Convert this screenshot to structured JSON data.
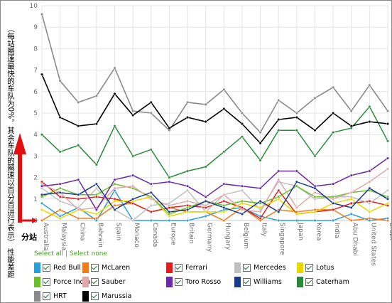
{
  "chart_data": {
    "type": "line",
    "ylabel": "（每站圈速最快的车队为0%，其余车队的圈速以百分百进行表示） 性能差距",
    "xlabel": "分站",
    "ylim": [
      0,
      10
    ],
    "y_ticks": [
      "0",
      "1",
      "2",
      "3",
      "4",
      "5",
      "6",
      "7",
      "8",
      "9",
      "10"
    ],
    "grid": true,
    "categories": [
      "Australia",
      "Malaysia",
      "China",
      "Bahrain",
      "Spain",
      "Monaco",
      "Canada",
      "Europe",
      "Britain",
      "Germany",
      "Hungary",
      "Belgium",
      "Italy",
      "Singapore",
      "Japan",
      "Korea",
      "India",
      "Abu Dhabi",
      "United States",
      "Brazil"
    ],
    "series": [
      {
        "name": "Red Bull",
        "color": "#2a9fd6",
        "values": [
          0.8,
          0.2,
          0.6,
          0.0,
          1.4,
          0.0,
          0.0,
          0.0,
          0.0,
          0.2,
          0.5,
          0.6,
          0.2,
          0.0,
          0.0,
          0.0,
          0.0,
          0.3,
          0.0,
          0.1
        ]
      },
      {
        "name": "McLaren",
        "color": "#f07c1e",
        "values": [
          0.0,
          0.5,
          0.1,
          0.1,
          0.7,
          0.8,
          0.4,
          0.6,
          0.4,
          0.4,
          0.0,
          0.6,
          0.0,
          0.5,
          0.4,
          0.5,
          0.5,
          0.0,
          0.1,
          0.0
        ]
      },
      {
        "name": "Ferrari",
        "color": "#e01e1e",
        "values": [
          1.8,
          1.1,
          1.0,
          1.1,
          1.0,
          0.8,
          0.4,
          0.6,
          0.7,
          0.6,
          0.9,
          0.6,
          0.1,
          1.4,
          0.3,
          0.4,
          0.5,
          0.8,
          0.9,
          0.7
        ]
      },
      {
        "name": "Mercedes",
        "color": "#c0c0c0",
        "values": [
          1.5,
          0.9,
          0.6,
          1.5,
          0.5,
          0.0,
          0.7,
          0.8,
          1.4,
          0.4,
          1.2,
          1.4,
          0.5,
          1.8,
          1.6,
          1.0,
          1.1,
          1.1,
          0.8,
          1.4
        ]
      },
      {
        "name": "Lotus",
        "color": "#e8d800",
        "values": [
          0.5,
          0.1,
          0.5,
          0.3,
          0.9,
          0.9,
          1.1,
          0.2,
          0.4,
          0.4,
          0.4,
          0.8,
          0.6,
          1.0,
          0.3,
          0.4,
          0.8,
          1.0,
          0.4,
          0.8
        ]
      },
      {
        "name": "Force India",
        "color": "#6bbf2a",
        "values": [
          1.1,
          1.5,
          1.2,
          1.2,
          1.7,
          1.5,
          1.1,
          0.3,
          0.6,
          0.9,
          0.7,
          0.9,
          0.8,
          1.1,
          1.6,
          1.1,
          1.1,
          1.3,
          1.4,
          1.1
        ]
      },
      {
        "name": "Sauber",
        "color": "#e0a8a8",
        "values": [
          1.7,
          1.3,
          0.5,
          0.6,
          1.5,
          1.6,
          1.0,
          0.7,
          0.9,
          0.7,
          1.2,
          0.5,
          0.4,
          1.9,
          0.6,
          1.3,
          1.0,
          1.3,
          1.8,
          2.4
        ]
      },
      {
        "name": "Toro Rosso",
        "color": "#6a2aa8",
        "values": [
          1.6,
          1.7,
          1.9,
          0.5,
          1.9,
          2.1,
          1.7,
          1.8,
          1.6,
          1.1,
          1.7,
          1.6,
          1.5,
          2.3,
          2.3,
          1.6,
          1.7,
          2.1,
          2.3,
          2.9
        ]
      },
      {
        "name": "Williams",
        "color": "#1a3a8a",
        "values": [
          1.2,
          1.3,
          1.2,
          1.7,
          0.5,
          1.0,
          1.3,
          0.4,
          0.5,
          0.9,
          0.6,
          0.3,
          0.9,
          0.4,
          1.8,
          1.5,
          0.8,
          0.6,
          1.5,
          1.0
        ]
      },
      {
        "name": "Caterham",
        "color": "#2a8a3a",
        "values": [
          4.0,
          3.2,
          3.5,
          2.6,
          4.4,
          3.0,
          3.3,
          2.0,
          2.3,
          2.5,
          3.2,
          3.9,
          2.8,
          4.2,
          4.2,
          3.0,
          4.1,
          4.3,
          5.3,
          3.7
        ]
      },
      {
        "name": "HRT",
        "color": "#8a8a8a",
        "values": [
          9.6,
          6.5,
          5.5,
          5.8,
          7.1,
          5.1,
          5.0,
          4.2,
          5.5,
          5.4,
          6.1,
          5.0,
          4.1,
          5.6,
          5.0,
          5.7,
          6.2,
          5.1,
          6.3,
          5.1
        ]
      },
      {
        "name": "Marussia",
        "color": "#000000",
        "values": [
          6.8,
          4.8,
          4.4,
          4.5,
          5.9,
          4.9,
          5.5,
          4.3,
          4.8,
          4.6,
          5.2,
          4.5,
          3.6,
          4.7,
          4.8,
          4.2,
          5.0,
          4.4,
          4.6,
          4.5
        ]
      }
    ]
  },
  "controls": {
    "select_all": "Select all",
    "separator": "|",
    "select_none": "Select none"
  }
}
